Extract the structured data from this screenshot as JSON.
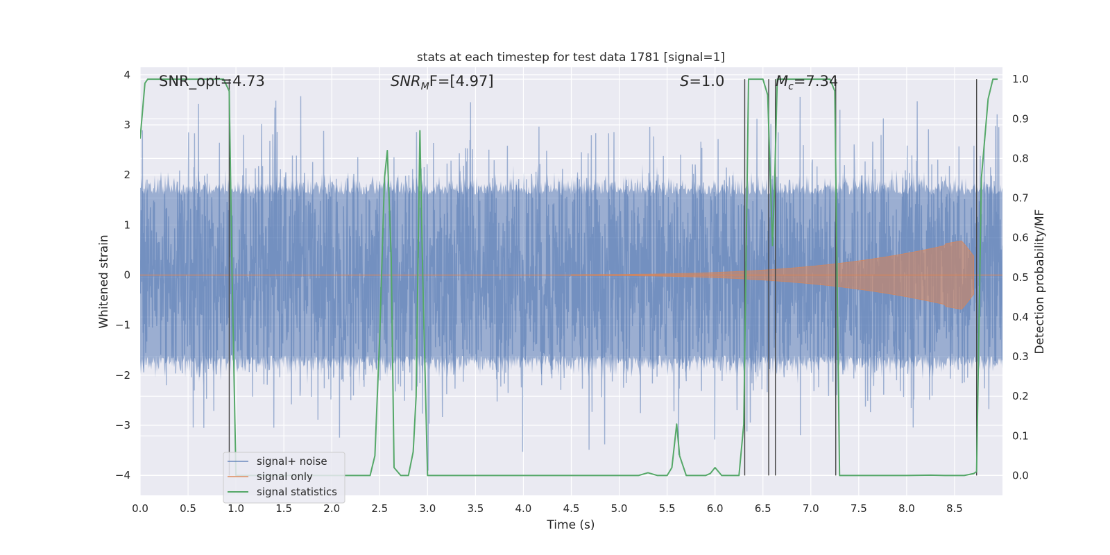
{
  "chart_data": {
    "type": "line",
    "title": "stats at each timestep for test data 1781 [signal=1]",
    "xlabel": "Time (s)",
    "ylabel_left": "Whitened strain",
    "ylabel_right": "Detection probability/MF",
    "xlim": [
      0.0,
      9.0
    ],
    "ylim_left": [
      -4.4,
      4.15
    ],
    "ylim_right": [
      -0.05,
      1.03
    ],
    "x_ticks": [
      "0.0",
      "0.5",
      "1.0",
      "1.5",
      "2.0",
      "2.5",
      "3.0",
      "3.5",
      "4.0",
      "4.5",
      "5.0",
      "5.5",
      "6.0",
      "6.5",
      "7.0",
      "7.5",
      "8.0",
      "8.5"
    ],
    "y_ticks_left": [
      "−4",
      "−3",
      "−2",
      "−1",
      "0",
      "1",
      "2",
      "3",
      "4"
    ],
    "y_ticks_right": [
      "0.0",
      "0.1",
      "0.2",
      "0.3",
      "0.4",
      "0.5",
      "0.6",
      "0.7",
      "0.8",
      "0.9",
      "1.0"
    ],
    "grid": true,
    "legend_placement": "lower-left",
    "annotations": {
      "snr_opt": "SNR_opt=4.73",
      "snr_mf_main": "SNR",
      "snr_mf_sub": "M",
      "snr_mf_rest": "F=[4.97]",
      "s_italic": "S",
      "s_rest": "=1.0",
      "mc_italic": "M",
      "mc_sub": "c",
      "mc_rest": "=7.34"
    },
    "series": [
      {
        "name": "signal+ noise",
        "color": "#4c72b0",
        "kind": "noise",
        "core_band": [
          -1.6,
          1.6
        ],
        "peak_range": [
          -4.2,
          3.7
        ]
      },
      {
        "name": "signal only",
        "color": "#dd8452",
        "kind": "chirp",
        "start": 4.5,
        "end": 8.7,
        "peak_amplitude": 0.7
      },
      {
        "name": "signal statistics",
        "color": "#55a868",
        "axis": "right",
        "x": [
          0.0,
          0.05,
          0.08,
          0.1,
          0.15,
          0.2,
          0.3,
          0.4,
          0.5,
          0.6,
          0.7,
          0.8,
          0.87,
          0.93,
          0.96,
          1.0,
          1.2,
          1.5,
          1.8,
          2.0,
          2.2,
          2.4,
          2.45,
          2.5,
          2.55,
          2.58,
          2.62,
          2.65,
          2.72,
          2.8,
          2.85,
          2.88,
          2.92,
          2.95,
          3.0,
          3.3,
          3.6,
          4.0,
          4.5,
          5.0,
          5.2,
          5.3,
          5.4,
          5.5,
          5.55,
          5.6,
          5.63,
          5.7,
          5.8,
          5.9,
          5.95,
          6.0,
          6.07,
          6.15,
          6.25,
          6.3,
          6.35,
          6.38,
          6.5,
          6.55,
          6.6,
          6.62,
          6.65,
          6.8,
          7.0,
          7.2,
          7.25,
          7.3,
          7.35,
          7.5,
          8.0,
          8.25,
          8.4,
          8.6,
          8.7,
          8.73,
          8.78,
          8.85,
          8.9,
          8.95
        ],
        "values": [
          0.85,
          0.99,
          1.0,
          1.0,
          1.0,
          1.0,
          1.0,
          1.0,
          1.0,
          1.0,
          1.0,
          1.0,
          1.0,
          0.97,
          0.5,
          0.0,
          0.0,
          0.0,
          0.0,
          0.0,
          0.0,
          0.0,
          0.05,
          0.35,
          0.75,
          0.82,
          0.55,
          0.02,
          0.0,
          0.0,
          0.06,
          0.2,
          0.87,
          0.5,
          0.0,
          0.0,
          0.0,
          0.0,
          0.0,
          0.0,
          0.0,
          0.007,
          0.0,
          0.0,
          0.02,
          0.13,
          0.05,
          0.0,
          0.0,
          0.0,
          0.005,
          0.02,
          0.0,
          0.0,
          0.0,
          0.13,
          1.0,
          1.0,
          1.0,
          0.96,
          0.58,
          0.72,
          1.0,
          1.0,
          1.0,
          1.0,
          0.97,
          0.0,
          0.0,
          0.0,
          0.0,
          0.001,
          0.0,
          0.0,
          0.005,
          0.01,
          0.75,
          0.95,
          1.0,
          1.0
        ]
      }
    ],
    "vertical_markers_x": [
      0.93,
      6.31,
      6.56,
      6.63,
      7.26,
      8.73
    ]
  }
}
